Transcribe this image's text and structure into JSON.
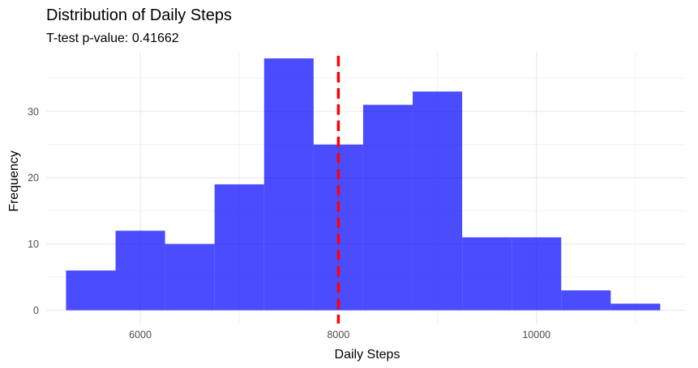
{
  "chart_data": {
    "type": "bar",
    "subtype": "histogram",
    "title": "Distribution of Daily Steps",
    "subtitle": "T-test p-value: 0.41662",
    "xlabel": "Daily Steps",
    "ylabel": "Frequency",
    "xlim": [
      5050,
      11500
    ],
    "ylim": [
      -2,
      39
    ],
    "x_ticks": [
      6000,
      8000,
      10000
    ],
    "x_tick_labels": [
      "6000",
      "8000",
      "10000"
    ],
    "y_ticks": [
      0,
      10,
      20,
      30
    ],
    "y_tick_labels": [
      "0",
      "10",
      "20",
      "30"
    ],
    "bin_width": 500,
    "bins": [
      {
        "start": 5250,
        "end": 5750,
        "count": 6
      },
      {
        "start": 5750,
        "end": 6250,
        "count": 12
      },
      {
        "start": 6250,
        "end": 6750,
        "count": 10
      },
      {
        "start": 6750,
        "end": 7250,
        "count": 19
      },
      {
        "start": 7250,
        "end": 7750,
        "count": 38
      },
      {
        "start": 7750,
        "end": 8250,
        "count": 25
      },
      {
        "start": 8250,
        "end": 8750,
        "count": 31
      },
      {
        "start": 8750,
        "end": 9250,
        "count": 33
      },
      {
        "start": 9250,
        "end": 9750,
        "count": 11
      },
      {
        "start": 9750,
        "end": 10250,
        "count": 11
      },
      {
        "start": 10250,
        "end": 10750,
        "count": 3
      },
      {
        "start": 10750,
        "end": 11250,
        "count": 1
      }
    ],
    "reference_line": {
      "x": 8000,
      "style": "dashed",
      "color": "#ff0000"
    },
    "bar_color": "#0000ff",
    "bar_opacity": 0.7,
    "grid": true,
    "legend": "none"
  }
}
